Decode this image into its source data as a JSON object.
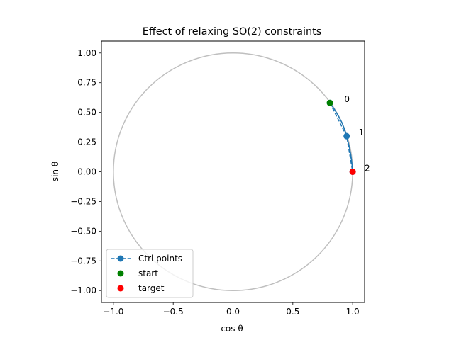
{
  "chart_data": {
    "type": "line",
    "title": "Effect of relaxing SO(2) constraints",
    "xlabel": "cos θ",
    "ylabel": "sin θ",
    "xlim": [
      -1.1,
      1.1
    ],
    "ylim": [
      -1.1,
      1.1
    ],
    "xticks": [
      -1.0,
      -0.5,
      0.0,
      0.5,
      1.0
    ],
    "xtick_labels": [
      "−1.0",
      "−0.5",
      "0.0",
      "0.5",
      "1.0"
    ],
    "yticks": [
      1.0,
      0.75,
      0.5,
      0.25,
      0.0,
      -0.25,
      -0.5,
      -0.75,
      -1.0
    ],
    "ytick_labels": [
      "1.00",
      "0.75",
      "0.50",
      "0.25",
      "0.00",
      "−0.25",
      "−0.50",
      "−0.75",
      "−1.00"
    ],
    "grid": false,
    "legend_position": "lower-left",
    "unit_circle": {
      "center": [
        0,
        0
      ],
      "radius": 1.0,
      "color": "#bfbfbf"
    },
    "series": [
      {
        "name": "Ctrl points",
        "style": "dashed-line-with-markers",
        "color": "#1f77b4",
        "x": [
          0.81,
          0.95,
          1.0
        ],
        "y": [
          0.58,
          0.3,
          0.0
        ]
      },
      {
        "name": "start",
        "style": "marker",
        "color": "#008000",
        "x": [
          0.81
        ],
        "y": [
          0.58
        ]
      },
      {
        "name": "target",
        "style": "marker",
        "color": "#ff0000",
        "x": [
          1.0
        ],
        "y": [
          0.0
        ]
      }
    ],
    "curve": {
      "color": "#1f77b4",
      "x": [
        0.81,
        0.845,
        0.878,
        0.91,
        0.935,
        0.955,
        0.972,
        0.985,
        0.994,
        1.0
      ],
      "y": [
        0.58,
        0.53,
        0.475,
        0.415,
        0.35,
        0.28,
        0.21,
        0.14,
        0.07,
        0.0
      ]
    },
    "annotations": [
      {
        "text": "0",
        "x": 0.93,
        "y": 0.61
      },
      {
        "text": "1",
        "x": 1.05,
        "y": 0.33
      },
      {
        "text": "2",
        "x": 1.1,
        "y": 0.03
      }
    ]
  }
}
